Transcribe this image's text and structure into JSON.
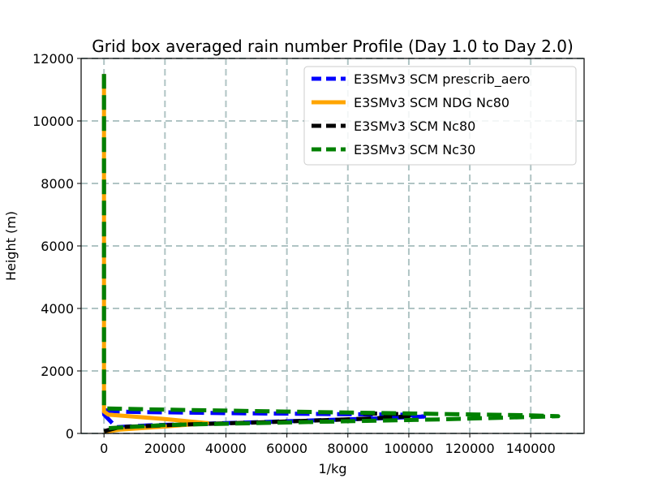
{
  "chart_data": {
    "type": "line",
    "title": "Grid box averaged rain number Profile (Day 1.0 to Day 2.0)",
    "xlabel": "1/kg",
    "ylabel": "Height (m)",
    "xlim": [
      -7500,
      157500
    ],
    "ylim": [
      0,
      12000
    ],
    "xticks": [
      0,
      20000,
      40000,
      60000,
      80000,
      100000,
      120000,
      140000
    ],
    "yticks": [
      0,
      2000,
      4000,
      6000,
      8000,
      10000,
      12000
    ],
    "grid": true,
    "legend_position": "top-right",
    "series": [
      {
        "name": "E3SMv3 SCM prescrib_aero",
        "color": "#0000ff",
        "style": "dashed",
        "points": [
          [
            0,
            11500
          ],
          [
            0,
            1000
          ],
          [
            0,
            700
          ],
          [
            50,
            600
          ],
          [
            4000,
            200
          ],
          [
            15000,
            260
          ],
          [
            40000,
            330
          ],
          [
            70000,
            420
          ],
          [
            90000,
            480
          ],
          [
            105000,
            540
          ],
          [
            98000,
            600
          ],
          [
            40000,
            650
          ],
          [
            8000,
            690
          ],
          [
            2000,
            720
          ],
          [
            0,
            750
          ]
        ]
      },
      {
        "name": "E3SMv3 SCM NDG Nc80",
        "color": "#ffa500",
        "style": "solid",
        "points": [
          [
            0,
            11500
          ],
          [
            0,
            1500
          ],
          [
            0,
            700
          ],
          [
            1500,
            600
          ],
          [
            8000,
            550
          ],
          [
            20000,
            460
          ],
          [
            34000,
            330
          ],
          [
            20000,
            220
          ],
          [
            5000,
            120
          ],
          [
            0,
            50
          ]
        ]
      },
      {
        "name": "E3SMv3 SCM Nc80",
        "color": "#000000",
        "style": "dashed",
        "points": [
          [
            0,
            70
          ],
          [
            5000,
            200
          ],
          [
            25000,
            280
          ],
          [
            50000,
            350
          ],
          [
            75000,
            430
          ],
          [
            90000,
            490
          ],
          [
            100000,
            550
          ],
          [
            97000,
            620
          ],
          [
            85000,
            640
          ]
        ]
      },
      {
        "name": "E3SMv3 SCM Nc30",
        "color": "#008000",
        "style": "dashed",
        "points": [
          [
            0,
            11500
          ],
          [
            0,
            4000
          ],
          [
            0,
            800
          ],
          [
            20000,
            760
          ],
          [
            60000,
            700
          ],
          [
            100000,
            640
          ],
          [
            140000,
            580
          ],
          [
            149000,
            550
          ],
          [
            110000,
            450
          ],
          [
            60000,
            350
          ],
          [
            20000,
            270
          ],
          [
            0,
            160
          ]
        ]
      }
    ]
  }
}
